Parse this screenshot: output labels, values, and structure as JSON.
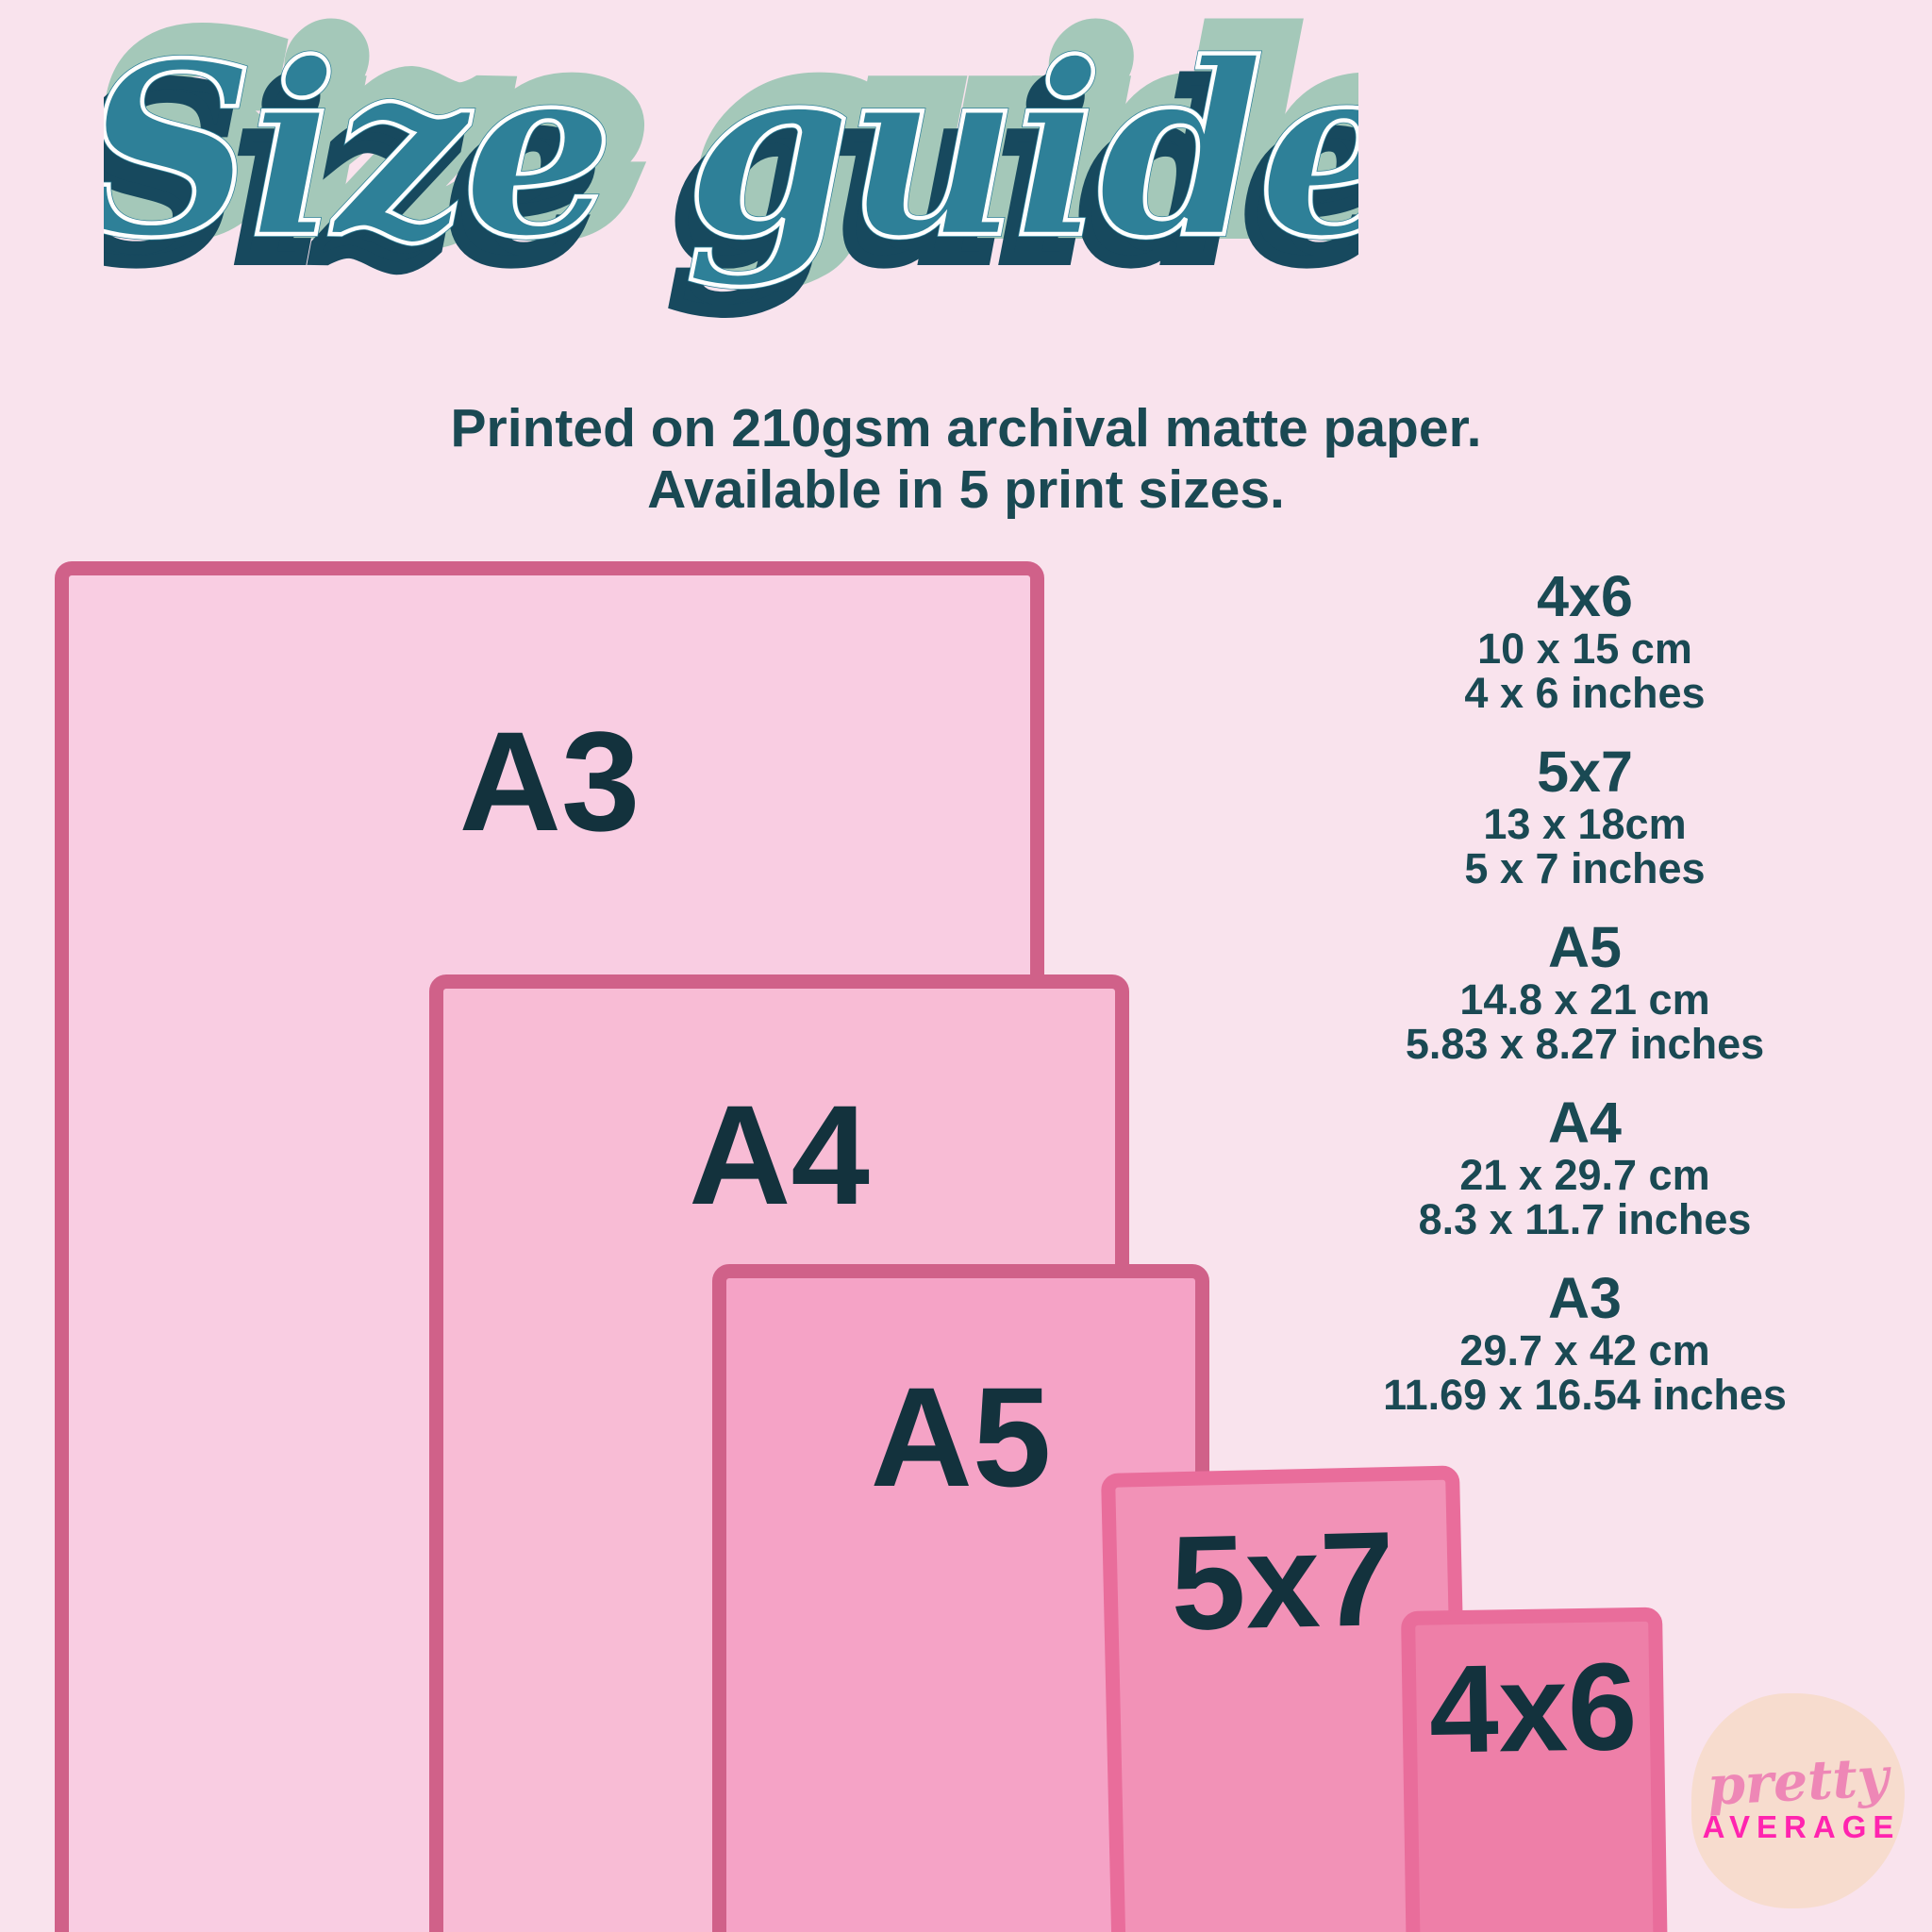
{
  "title": "Size guide",
  "subtitle": {
    "line1": "Printed on 210gsm archival matte paper.",
    "line2": "Available in 5 print sizes."
  },
  "rectangles": [
    {
      "label": "A3"
    },
    {
      "label": "A4"
    },
    {
      "label": "A5"
    },
    {
      "label": "5x7"
    },
    {
      "label": "4x6"
    }
  ],
  "size_list": [
    {
      "name": "4x6",
      "cm": "10 x 15 cm",
      "inches": "4 x 6 inches"
    },
    {
      "name": "5x7",
      "cm": "13 x 18cm",
      "inches": "5 x 7 inches"
    },
    {
      "name": "A5",
      "cm": "14.8 x 21 cm",
      "inches": "5.83 x 8.27 inches"
    },
    {
      "name": "A4",
      "cm": "21 x 29.7 cm",
      "inches": "8.3 x 11.7 inches"
    },
    {
      "name": "A3",
      "cm": "29.7 x 42 cm",
      "inches": "11.69 x 16.54 inches"
    }
  ],
  "logo": {
    "line1": "pretty",
    "line2": "AVERAGE"
  },
  "colors": {
    "bg": "#f9e3ed",
    "fill-a3": "#f9cde2",
    "fill-a4": "#f8bcd5",
    "fill-a5": "#f5a3c6",
    "fill-57": "#f292b7",
    "fill-46": "#ee7fa8",
    "border-large": "#d06189",
    "border-small": "#e96d9b",
    "teal-text": "#1a4953",
    "label-color": "#13323d",
    "title-main": "#2e8098",
    "title-sage": "#a4c8b9",
    "title-navy": "#17495e",
    "title-white": "#ffffff",
    "logo-blob": "#f7dcce",
    "logo-pink": "#ee87b6",
    "logo-magenta": "#ff24af"
  }
}
